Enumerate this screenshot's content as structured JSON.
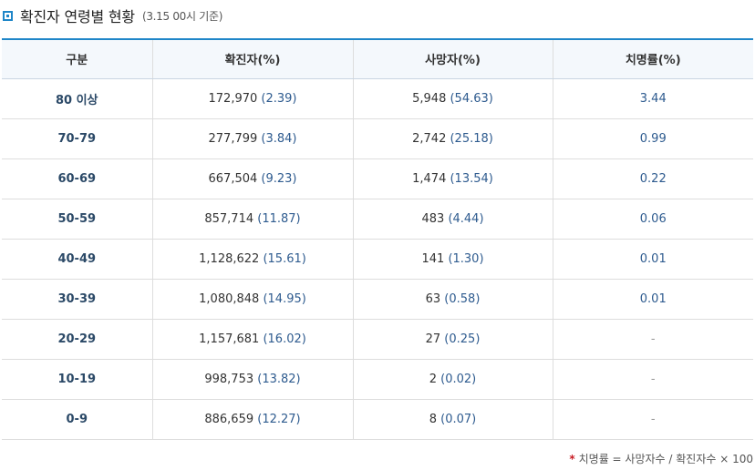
{
  "title": {
    "text": "확진자 연령별 현황",
    "note": "(3.15 00시 기준)",
    "accent": "#1f86c8"
  },
  "table": {
    "headers": [
      "구분",
      "확진자(%)",
      "사망자(%)",
      "치명률(%)"
    ],
    "rows": [
      {
        "age": "80 이상",
        "confirmed": "172,970",
        "confirmed_pct": "(2.39)",
        "deaths": "5,948",
        "deaths_pct": "(54.63)",
        "fatality": "3.44"
      },
      {
        "age": "70-79",
        "confirmed": "277,799",
        "confirmed_pct": "(3.84)",
        "deaths": "2,742",
        "deaths_pct": "(25.18)",
        "fatality": "0.99"
      },
      {
        "age": "60-69",
        "confirmed": "667,504",
        "confirmed_pct": "(9.23)",
        "deaths": "1,474",
        "deaths_pct": "(13.54)",
        "fatality": "0.22"
      },
      {
        "age": "50-59",
        "confirmed": "857,714",
        "confirmed_pct": "(11.87)",
        "deaths": "483",
        "deaths_pct": "(4.44)",
        "fatality": "0.06"
      },
      {
        "age": "40-49",
        "confirmed": "1,128,622",
        "confirmed_pct": "(15.61)",
        "deaths": "141",
        "deaths_pct": "(1.30)",
        "fatality": "0.01"
      },
      {
        "age": "30-39",
        "confirmed": "1,080,848",
        "confirmed_pct": "(14.95)",
        "deaths": "63",
        "deaths_pct": "(0.58)",
        "fatality": "0.01"
      },
      {
        "age": "20-29",
        "confirmed": "1,157,681",
        "confirmed_pct": "(16.02)",
        "deaths": "27",
        "deaths_pct": "(0.25)",
        "fatality": "-"
      },
      {
        "age": "10-19",
        "confirmed": "998,753",
        "confirmed_pct": "(13.82)",
        "deaths": "2",
        "deaths_pct": "(0.02)",
        "fatality": "-"
      },
      {
        "age": "0-9",
        "confirmed": "886,659",
        "confirmed_pct": "(12.27)",
        "deaths": "8",
        "deaths_pct": "(0.07)",
        "fatality": "-"
      }
    ]
  },
  "footnote": {
    "star": "*",
    "text": "치명률 = 사망자수 / 확진자수 × 100"
  },
  "colors": {
    "accent": "#1f86c8",
    "header_bg": "#f4f8fc",
    "value_blue": "#2e5b8f",
    "star_red": "#c81d25"
  }
}
